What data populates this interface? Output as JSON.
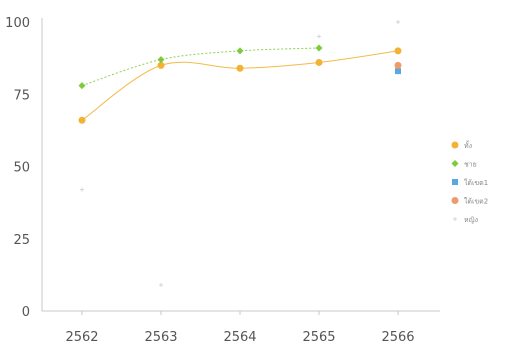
{
  "chart_data": {
    "type": "line",
    "categories": [
      "2562",
      "2563",
      "2564",
      "2565",
      "2566"
    ],
    "ylim": [
      0,
      100
    ],
    "yticks": [
      "0",
      "25",
      "50",
      "75",
      "100"
    ],
    "grid": false,
    "legend_position": "right",
    "series": [
      {
        "name": "ทั้ง",
        "color": "#f2b233",
        "marker": "circle",
        "values": [
          66,
          85,
          84,
          86,
          90
        ]
      },
      {
        "name": "ชาย",
        "color": "#7ccc3a",
        "marker": "diamond",
        "values": [
          78,
          87,
          90,
          91,
          null
        ]
      },
      {
        "name": "ใต้เขต1",
        "color": "#5aa8e0",
        "marker": "square",
        "values": [
          null,
          null,
          null,
          null,
          83
        ]
      },
      {
        "name": "ใต้เขต2",
        "color": "#ef9a6b",
        "marker": "circle",
        "values": [
          null,
          null,
          null,
          null,
          85
        ]
      },
      {
        "name": "หญิง",
        "color": "#cfd6e6",
        "marker": "plus",
        "values": [
          42,
          9,
          null,
          95,
          100
        ]
      }
    ]
  }
}
